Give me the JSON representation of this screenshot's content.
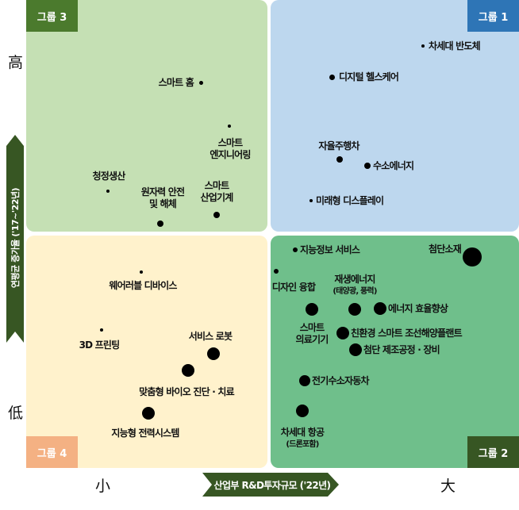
{
  "axes": {
    "y_label": "연평균 증가율 ('17~'22년)",
    "y_high": "高",
    "y_low": "低",
    "x_label": "산업부 R&D투자규모 ('22년)",
    "x_low": "小",
    "x_high": "大"
  },
  "colors": {
    "group1_bg": "#bdd7ee",
    "group1_tag": "#2e75b6",
    "group2_bg": "#6fbf8b",
    "group2_tag": "#375623",
    "group3_bg": "#c5e0b4",
    "group3_tag": "#4b7a2d",
    "group4_bg": "#fff2cc",
    "group4_tag": "#f4b183",
    "axis_arrow": "#375623"
  },
  "groups": [
    {
      "id": "group1",
      "label": "그룹 1",
      "quadrant": "high-growth, large-investment"
    },
    {
      "id": "group2",
      "label": "그룹 2",
      "quadrant": "low-growth, large-investment"
    },
    {
      "id": "group3",
      "label": "그룹 3",
      "quadrant": "high-growth, small-investment"
    },
    {
      "id": "group4",
      "label": "그룹 4",
      "quadrant": "low-growth, small-investment"
    }
  ],
  "items": [
    {
      "group": "group3",
      "lines": [
        "스마트 홈"
      ]
    },
    {
      "group": "group3",
      "lines": [
        "스마트",
        "엔지니어링"
      ]
    },
    {
      "group": "group3",
      "lines": [
        "청정생산"
      ]
    },
    {
      "group": "group3",
      "lines": [
        "원자력 안전",
        "및 해체"
      ]
    },
    {
      "group": "group3",
      "lines": [
        "스마트",
        "산업기계"
      ]
    },
    {
      "group": "group1",
      "lines": [
        "차세대 반도체"
      ]
    },
    {
      "group": "group1",
      "lines": [
        "디지털 헬스케어"
      ]
    },
    {
      "group": "group1",
      "lines": [
        "자율주행차"
      ]
    },
    {
      "group": "group1",
      "lines": [
        "수소에너지"
      ]
    },
    {
      "group": "group1",
      "lines": [
        "미래형 디스플레이"
      ]
    },
    {
      "group": "group2",
      "lines": [
        "지능정보 서비스"
      ]
    },
    {
      "group": "group2",
      "lines": [
        "첨단소재"
      ]
    },
    {
      "group": "group2",
      "lines": [
        "디자인 융합"
      ]
    },
    {
      "group": "group2",
      "lines": [
        "재생에너지",
        "(태양광, 풍력)"
      ]
    },
    {
      "group": "group2",
      "lines": [
        "스마트",
        "의료기기"
      ]
    },
    {
      "group": "group2",
      "lines": [
        "에너지 효율향상"
      ]
    },
    {
      "group": "group2",
      "lines": [
        "친환경 스마트 조선해양플랜트"
      ]
    },
    {
      "group": "group2",
      "lines": [
        "첨단 제조공정 · 장비"
      ]
    },
    {
      "group": "group2",
      "lines": [
        "전기수소자동차"
      ]
    },
    {
      "group": "group2",
      "lines": [
        "차세대 항공",
        "(드론포함)"
      ]
    },
    {
      "group": "group4",
      "lines": [
        "웨어러블 디바이스"
      ]
    },
    {
      "group": "group4",
      "lines": [
        "3D 프린팅"
      ]
    },
    {
      "group": "group4",
      "lines": [
        "서비스 로봇"
      ]
    },
    {
      "group": "group4",
      "lines": [
        "맞춤형 바이오 진단 · 치료"
      ]
    },
    {
      "group": "group4",
      "lines": [
        "지능형 전력시스템"
      ]
    }
  ]
}
